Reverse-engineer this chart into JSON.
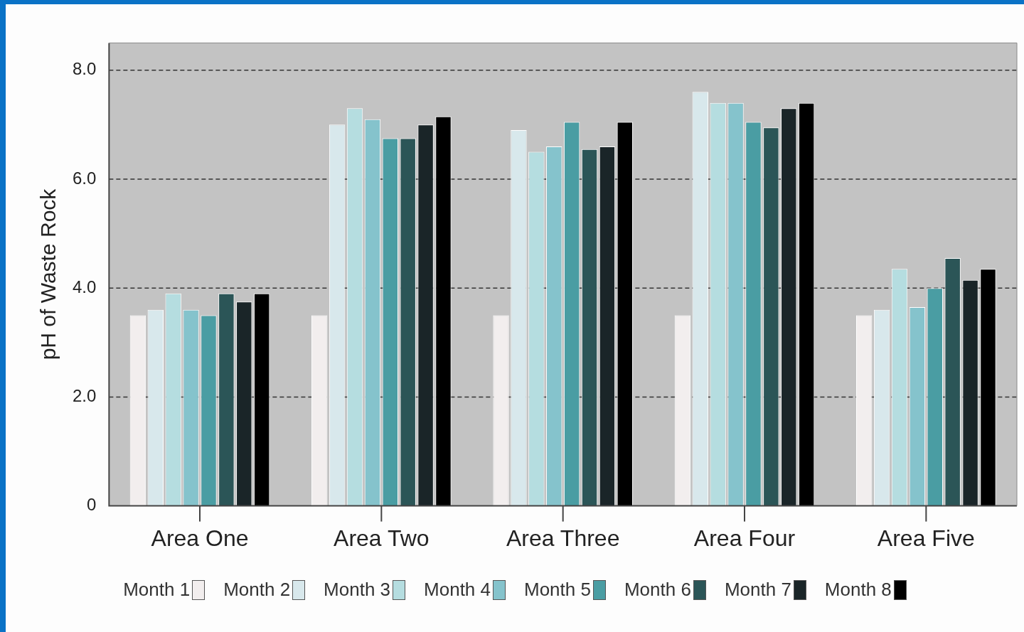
{
  "chart_data": {
    "type": "bar",
    "ylabel": "pH of Waste Rock",
    "categories": [
      "Area One",
      "Area Two",
      "Area Three",
      "Area Four",
      "Area Five"
    ],
    "series": [
      {
        "name": "Month 1",
        "color": "#f2eeee",
        "values": [
          3.5,
          3.5,
          3.5,
          3.5,
          3.5
        ]
      },
      {
        "name": "Month 2",
        "color": "#d8e8ec",
        "values": [
          3.6,
          7.0,
          6.9,
          7.6,
          3.6
        ]
      },
      {
        "name": "Month 3",
        "color": "#b5dde0",
        "values": [
          3.9,
          7.3,
          6.5,
          7.4,
          4.35
        ]
      },
      {
        "name": "Month 4",
        "color": "#85c3cc",
        "values": [
          3.6,
          7.1,
          6.6,
          7.4,
          3.65
        ]
      },
      {
        "name": "Month 5",
        "color": "#4a9da3",
        "values": [
          3.5,
          6.75,
          7.05,
          7.05,
          4.0
        ]
      },
      {
        "name": "Month 6",
        "color": "#2b5557",
        "values": [
          3.9,
          6.75,
          6.55,
          6.95,
          4.55
        ]
      },
      {
        "name": "Month 7",
        "color": "#1a2528",
        "values": [
          3.75,
          7.0,
          6.6,
          7.3,
          4.15
        ]
      },
      {
        "name": "Month 8",
        "color": "#000000",
        "values": [
          3.9,
          7.15,
          7.05,
          7.4,
          4.35
        ]
      }
    ],
    "ylim": [
      0,
      8.5
    ],
    "yticks": [
      0,
      {
        "value": 2,
        "label": "2.0"
      },
      {
        "value": 4,
        "label": "4.0"
      },
      {
        "value": 6,
        "label": "6.0"
      },
      {
        "value": 8,
        "label": "8.0"
      }
    ],
    "grid": "y",
    "legend": "bottom"
  }
}
